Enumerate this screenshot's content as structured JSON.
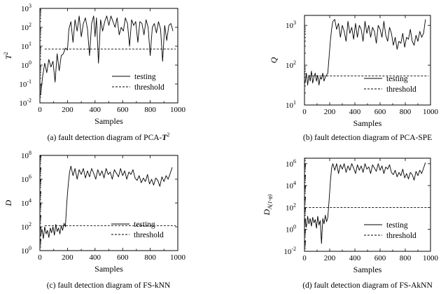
{
  "chart_data": [
    {
      "type": "line",
      "caption": "(a) fault detection diagram of PCA-",
      "caption_stat": "T",
      "caption_sup": "2",
      "xlabel": "Samples",
      "ylabel": "T",
      "ylabel_sup": "2",
      "ylabel_sub": "",
      "yscale": "log",
      "xlim": [
        0,
        1000
      ],
      "ylim_exp": [
        -2,
        3
      ],
      "xticks": [
        "0",
        "200",
        "400",
        "600",
        "800",
        "1000"
      ],
      "ytick_labels": [
        {
          "base": "10",
          "exp": "-2"
        },
        {
          "base": "10",
          "exp": "-1"
        },
        {
          "base": "10",
          "exp": "0"
        },
        {
          "base": "10",
          "exp": "1"
        },
        {
          "base": "10",
          "exp": "2"
        },
        {
          "base": "10",
          "exp": "3"
        }
      ],
      "legend": [
        {
          "label": "testing",
          "style": "solid"
        },
        {
          "label": "threshold",
          "style": "dashed"
        }
      ],
      "legend_pos": "bottom-left",
      "threshold_log10": 0.85,
      "series": [
        {
          "name": "testing",
          "x": [
            5,
            20,
            35,
            50,
            65,
            80,
            95,
            110,
            125,
            140,
            155,
            170,
            185,
            200,
            210,
            225,
            240,
            255,
            270,
            285,
            300,
            315,
            330,
            345,
            360,
            375,
            390,
            400,
            410,
            425,
            440,
            455,
            470,
            485,
            500,
            515,
            530,
            545,
            560,
            575,
            590,
            605,
            620,
            635,
            650,
            665,
            680,
            695,
            710,
            725,
            740,
            755,
            770,
            785,
            800,
            815,
            830,
            845,
            860,
            875,
            890,
            905,
            920,
            935,
            950,
            965
          ],
          "log10y": [
            -1.6,
            -0.6,
            0.1,
            -0.4,
            0.3,
            -0.1,
            0.2,
            -0.9,
            0.6,
            -0.3,
            0.5,
            0.6,
            0.9,
            0.8,
            1.9,
            2.3,
            1.2,
            2.4,
            1.8,
            2.6,
            1.5,
            2.2,
            2.5,
            1.9,
            0.5,
            2.2,
            2.6,
            1.5,
            2.5,
            0.1,
            2.4,
            1.8,
            2.3,
            2.6,
            2.1,
            2.6,
            2.3,
            2.0,
            2.5,
            1.6,
            2.0,
            1.8,
            2.5,
            2.2,
            1.0,
            2.4,
            2.1,
            2.3,
            1.2,
            2.3,
            2.2,
            1.6,
            2.4,
            2.0,
            0.5,
            2.0,
            2.2,
            1.7,
            2.3,
            1.9,
            0.2,
            2.1,
            1.3,
            2.1,
            2.2,
            1.8
          ]
        }
      ]
    },
    {
      "type": "line",
      "caption": "(b) fault detection diagram of PCA-SPE",
      "caption_stat": "",
      "caption_sup": "",
      "xlabel": "Samples",
      "ylabel": "Q",
      "ylabel_sup": "",
      "ylabel_sub": "",
      "yscale": "log",
      "xlim": [
        0,
        1000
      ],
      "ylim_exp": [
        1,
        3.25
      ],
      "xticks": [
        "0",
        "200",
        "400",
        "600",
        "800",
        "1000"
      ],
      "ytick_labels": [
        {
          "base": "10",
          "exp": "1"
        },
        {
          "base": "10",
          "exp": "2"
        },
        {
          "base": "10",
          "exp": "3"
        }
      ],
      "legend": [
        {
          "label": "testing",
          "style": "solid"
        },
        {
          "label": "threshold",
          "style": "dashed"
        }
      ],
      "legend_pos": "bottom-right",
      "threshold_log10": 1.73,
      "series": [
        {
          "name": "testing",
          "x": [
            5,
            15,
            25,
            35,
            45,
            55,
            65,
            75,
            85,
            95,
            105,
            115,
            125,
            135,
            145,
            155,
            165,
            175,
            185,
            195,
            205,
            215,
            225,
            240,
            255,
            270,
            285,
            300,
            315,
            330,
            345,
            360,
            375,
            390,
            405,
            420,
            435,
            450,
            465,
            480,
            495,
            510,
            525,
            540,
            555,
            570,
            585,
            600,
            615,
            630,
            645,
            660,
            675,
            690,
            705,
            720,
            735,
            750,
            765,
            780,
            795,
            810,
            825,
            840,
            855,
            870,
            885,
            900,
            915,
            930,
            945,
            960
          ],
          "log10y": [
            1.55,
            1.8,
            1.5,
            1.75,
            1.6,
            1.85,
            1.55,
            1.7,
            1.8,
            1.6,
            1.75,
            1.5,
            1.7,
            1.65,
            1.8,
            1.6,
            1.7,
            1.75,
            1.8,
            2.2,
            2.6,
            2.9,
            3.1,
            3.15,
            2.9,
            3.05,
            2.7,
            3.0,
            2.85,
            2.6,
            3.1,
            2.8,
            2.95,
            2.65,
            3.05,
            2.7,
            3.0,
            2.9,
            2.6,
            3.1,
            2.8,
            3.0,
            2.7,
            2.95,
            2.85,
            2.55,
            3.0,
            2.9,
            2.7,
            3.1,
            2.75,
            2.6,
            2.95,
            2.8,
            2.5,
            2.7,
            2.4,
            2.6,
            2.55,
            2.8,
            2.45,
            2.7,
            2.65,
            2.9,
            2.6,
            2.5,
            2.75,
            2.6,
            2.85,
            2.7,
            2.8,
            3.15
          ]
        }
      ]
    },
    {
      "type": "line",
      "caption": "(c) fault detection diagram of FS-kNN",
      "caption_stat": "",
      "caption_sup": "",
      "xlabel": "Samples",
      "ylabel": "D",
      "ylabel_sup": "",
      "ylabel_sub": "",
      "yscale": "log",
      "xlim": [
        0,
        1000
      ],
      "ylim_exp": [
        0,
        8
      ],
      "xticks": [
        "0",
        "200",
        "400",
        "600",
        "800",
        "1000"
      ],
      "ytick_labels": [
        {
          "base": "10",
          "exp": "0"
        },
        {
          "base": "10",
          "exp": "2"
        },
        {
          "base": "10",
          "exp": "4"
        },
        {
          "base": "10",
          "exp": "6"
        },
        {
          "base": "10",
          "exp": "8"
        }
      ],
      "legend": [
        {
          "label": "testing",
          "style": "solid"
        },
        {
          "label": "threshold",
          "style": "dashed"
        }
      ],
      "legend_pos": "bottom-right",
      "threshold_log10": 2.1,
      "series": [
        {
          "name": "testing",
          "x": [
            5,
            15,
            25,
            35,
            45,
            55,
            65,
            75,
            85,
            95,
            105,
            115,
            125,
            135,
            145,
            155,
            165,
            175,
            185,
            195,
            205,
            215,
            225,
            240,
            255,
            270,
            285,
            300,
            315,
            330,
            345,
            360,
            375,
            390,
            405,
            420,
            435,
            450,
            465,
            480,
            495,
            510,
            525,
            540,
            555,
            570,
            585,
            600,
            615,
            630,
            645,
            660,
            675,
            690,
            705,
            720,
            735,
            750,
            765,
            780,
            795,
            810,
            825,
            840,
            855,
            870,
            885,
            900,
            915,
            930,
            945,
            960
          ],
          "log10y": [
            1.2,
            1.8,
            1.0,
            2.0,
            1.4,
            1.7,
            1.1,
            1.9,
            1.5,
            2.0,
            1.3,
            2.2,
            1.6,
            1.9,
            1.4,
            2.1,
            1.7,
            2.3,
            2.0,
            4.0,
            5.5,
            6.6,
            7.1,
            6.3,
            6.9,
            6.0,
            6.8,
            6.4,
            6.9,
            6.1,
            6.7,
            6.2,
            6.9,
            6.5,
            6.0,
            6.8,
            6.3,
            6.7,
            6.1,
            6.9,
            6.4,
            6.6,
            6.0,
            6.8,
            6.5,
            6.2,
            6.9,
            6.3,
            6.7,
            6.0,
            6.6,
            6.4,
            6.8,
            6.1,
            5.9,
            6.3,
            5.7,
            6.1,
            5.8,
            6.4,
            5.6,
            6.0,
            5.5,
            6.1,
            5.9,
            5.4,
            6.2,
            5.8,
            6.3,
            6.0,
            6.5,
            7.0
          ]
        }
      ]
    },
    {
      "type": "line",
      "caption": "(d) fault detection diagram of FS-AkNN",
      "caption_stat": "",
      "caption_sup": "",
      "xlabel": "Samples",
      "ylabel": "D",
      "ylabel_sup": "",
      "ylabel_sub": "A(1-φ)",
      "yscale": "log",
      "xlim": [
        0,
        1000
      ],
      "ylim_exp": [
        -2,
        6.5
      ],
      "xticks": [
        "0",
        "200",
        "400",
        "600",
        "800",
        "1000"
      ],
      "ytick_labels": [
        {
          "base": "10",
          "exp": "-2"
        },
        {
          "base": "10",
          "exp": "0"
        },
        {
          "base": "10",
          "exp": "2"
        },
        {
          "base": "10",
          "exp": "4"
        },
        {
          "base": "10",
          "exp": "6"
        }
      ],
      "legend": [
        {
          "label": "testing",
          "style": "solid"
        },
        {
          "label": "threshold",
          "style": "dashed"
        }
      ],
      "legend_pos": "bottom-right",
      "threshold_log10": 2.0,
      "series": [
        {
          "name": "testing",
          "x": [
            5,
            15,
            25,
            35,
            45,
            55,
            65,
            75,
            85,
            95,
            105,
            115,
            125,
            135,
            145,
            155,
            165,
            175,
            185,
            195,
            205,
            215,
            225,
            240,
            255,
            270,
            285,
            300,
            315,
            330,
            345,
            360,
            375,
            390,
            405,
            420,
            435,
            450,
            465,
            480,
            495,
            510,
            525,
            540,
            555,
            570,
            585,
            600,
            615,
            630,
            645,
            660,
            675,
            690,
            705,
            720,
            735,
            750,
            765,
            780,
            795,
            810,
            825,
            840,
            855,
            870,
            885,
            900,
            915,
            930,
            945,
            960
          ],
          "log10y": [
            0.8,
            0.2,
            1.2,
            0.5,
            1.0,
            0.3,
            1.1,
            0.6,
            0.9,
            0.1,
            1.2,
            0.4,
            0.8,
            -1.3,
            1.0,
            0.5,
            1.3,
            0.7,
            1.1,
            2.6,
            4.3,
            5.6,
            6.0,
            5.4,
            6.0,
            5.1,
            5.9,
            5.5,
            6.0,
            5.2,
            5.8,
            5.4,
            6.0,
            5.6,
            5.1,
            5.9,
            5.4,
            5.8,
            5.2,
            6.0,
            5.5,
            5.7,
            5.1,
            5.9,
            5.6,
            5.3,
            6.0,
            5.4,
            5.8,
            5.1,
            5.7,
            5.5,
            5.9,
            5.2,
            5.0,
            5.4,
            4.8,
            5.2,
            4.9,
            5.5,
            4.7,
            5.1,
            4.6,
            5.2,
            5.0,
            4.5,
            5.3,
            4.9,
            5.4,
            5.1,
            5.6,
            6.1
          ]
        }
      ]
    }
  ]
}
